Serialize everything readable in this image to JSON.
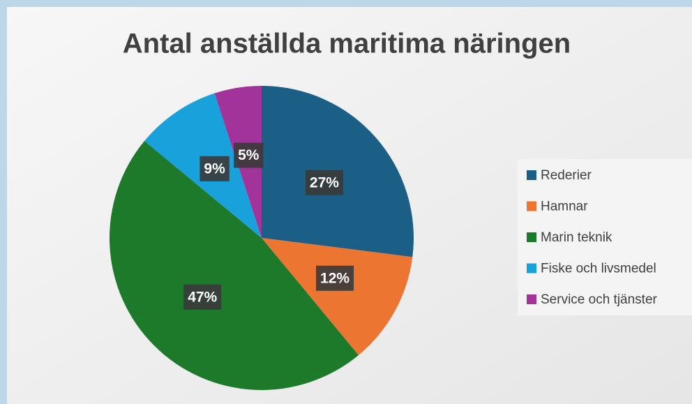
{
  "chart_data": {
    "type": "pie",
    "title": "Antal anställda maritima näringen",
    "categories": [
      "Rederier",
      "Hamnar",
      "Marin teknik",
      "Fiske och livsmedel",
      "Service och tjänster"
    ],
    "values": [
      27,
      12,
      47,
      9,
      5
    ],
    "value_labels": [
      "27%",
      "12%",
      "47%",
      "9%",
      "5%"
    ],
    "colors": [
      "#1c5f86",
      "#ec7532",
      "#1d7a2b",
      "#18a1db",
      "#a1339b"
    ],
    "legend": "right"
  }
}
